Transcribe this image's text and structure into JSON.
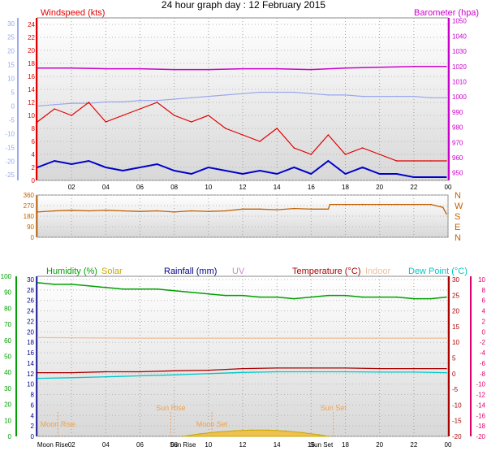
{
  "title": "24 hour graph day : 12 February 2015",
  "colors": {
    "wind_speed": "#e00000",
    "wind_avg": "#0000cc",
    "wind_temp_scale": "#9aa8ee",
    "barometer": "#cc00cc",
    "direction": "#c06000",
    "humidity": "#00a000",
    "solar": "#c8a800",
    "rainfall": "#000090",
    "uv": "#cc88cc",
    "temperature": "#aa0000",
    "indoor": "#f0c0a0",
    "dewpoint": "#00c8c8",
    "moon": "#f0a050",
    "solar_fill": "#f0c050"
  },
  "chart_data": [
    {
      "type": "line",
      "name": "wind-barometer-panel",
      "label_left": "Windspeed (kts)",
      "label_right": "Barometer (hpa)",
      "x_ticks": [
        "02",
        "04",
        "06",
        "08",
        "10",
        "12",
        "14",
        "16",
        "18",
        "20",
        "22",
        "00"
      ],
      "y_left_ticks": [
        "0",
        "2",
        "4",
        "6",
        "8",
        "10",
        "12",
        "14",
        "16",
        "18",
        "20",
        "22",
        "24"
      ],
      "y_right_ticks": [
        "950",
        "960",
        "970",
        "980",
        "990",
        "1000",
        "1010",
        "1020",
        "1030",
        "1040",
        "1050"
      ],
      "y_far_left_ticks": [
        "30",
        "25",
        "20",
        "15",
        "10",
        "5",
        "0",
        "-5",
        "-10",
        "-15",
        "-20",
        "-25"
      ],
      "ylim_left": [
        0,
        25
      ],
      "ylim_right": [
        945,
        1052
      ],
      "ylim_far_left": [
        -27,
        32
      ],
      "series": [
        {
          "key": "barometer",
          "axis": "right",
          "x": [
            0,
            2,
            4,
            6,
            8,
            10,
            12,
            14,
            16,
            18,
            20,
            22,
            23.9
          ],
          "y": [
            1019,
            1019,
            1018.5,
            1018.5,
            1018,
            1018,
            1018.5,
            1018.5,
            1018,
            1019,
            1019.5,
            1020,
            1020
          ]
        },
        {
          "key": "wind_temp_scale",
          "axis": "far_left",
          "x": [
            0,
            1,
            2,
            3,
            4,
            5,
            6,
            7,
            8,
            9,
            10,
            11,
            12,
            13,
            14,
            15,
            16,
            17,
            18,
            19,
            20,
            21,
            22,
            23,
            23.9
          ],
          "y": [
            0,
            0.5,
            1,
            1,
            1.5,
            1.5,
            2,
            2,
            2.5,
            3,
            3.5,
            4,
            4.5,
            5,
            5,
            5,
            4.5,
            4,
            4,
            3.5,
            3.5,
            3.5,
            3.5,
            3,
            3
          ]
        },
        {
          "key": "wind_speed",
          "axis": "left",
          "x": [
            0,
            1,
            2,
            3,
            4,
            5,
            6,
            7,
            8,
            9,
            10,
            11,
            12,
            13,
            14,
            15,
            16,
            17,
            18,
            19,
            20,
            21,
            22,
            23,
            23.9
          ],
          "y": [
            9,
            11,
            10,
            12,
            9,
            10,
            11,
            12,
            10,
            9,
            10,
            8,
            7,
            6,
            8,
            5,
            4,
            7,
            4,
            5,
            4,
            3,
            3,
            3,
            3
          ]
        },
        {
          "key": "wind_avg",
          "axis": "left",
          "x": [
            0,
            1,
            2,
            3,
            4,
            5,
            6,
            7,
            8,
            9,
            10,
            11,
            12,
            13,
            14,
            15,
            16,
            17,
            18,
            19,
            20,
            21,
            22,
            23,
            23.9
          ],
          "y": [
            2,
            3,
            2.5,
            3,
            2,
            1.5,
            2,
            2.5,
            1.5,
            1,
            2,
            1.5,
            1,
            1.5,
            1,
            2,
            1,
            3,
            1,
            2,
            1,
            1,
            0.5,
            0.5,
            0.5
          ]
        }
      ]
    },
    {
      "type": "line",
      "name": "direction-panel",
      "y_ticks": [
        "360",
        "270",
        "180",
        "90",
        "0"
      ],
      "y_right_labels": [
        "N",
        "W",
        "S",
        "E",
        "N"
      ],
      "ylim": [
        0,
        360
      ],
      "series": [
        {
          "key": "direction",
          "x": [
            0,
            1,
            2,
            3,
            4,
            5,
            6,
            7,
            8,
            9,
            10,
            11,
            12,
            13,
            14,
            15,
            16,
            17,
            17.1,
            18,
            19,
            20,
            21,
            22,
            23,
            23.7,
            23.9
          ],
          "y": [
            215,
            225,
            230,
            225,
            230,
            225,
            220,
            225,
            215,
            225,
            220,
            225,
            240,
            240,
            235,
            245,
            240,
            240,
            280,
            280,
            280,
            280,
            280,
            280,
            280,
            255,
            200
          ]
        }
      ]
    },
    {
      "type": "line",
      "name": "temperature-panel",
      "legend": [
        "Humidity (%)",
        "Solar",
        "Rainfall (mm)",
        "UV",
        "Temperature (°C)",
        "Indoor",
        "Dew Point (°C)"
      ],
      "x_ticks": [
        "02",
        "04",
        "06",
        "08",
        "10",
        "12",
        "14",
        "16",
        "18",
        "20",
        "22",
        "00"
      ],
      "y_hum_ticks": [
        "0",
        "10",
        "20",
        "30",
        "40",
        "50",
        "60",
        "70",
        "80",
        "90",
        "100"
      ],
      "y_rain_ticks": [
        "0",
        "2",
        "4",
        "6",
        "8",
        "10",
        "12",
        "14",
        "16",
        "18",
        "20",
        "22",
        "24",
        "26",
        "28",
        "30"
      ],
      "y_right_temp_ticks": [
        "-20",
        "-15",
        "-10",
        "-5",
        "0",
        "5",
        "10",
        "15",
        "20",
        "25",
        "30"
      ],
      "y_far_right_ticks": [
        "-20",
        "-18",
        "-16",
        "-14",
        "-12",
        "-10",
        "-8",
        "-6",
        "-4",
        "-2",
        "0",
        "2",
        "4",
        "6",
        "8",
        "10"
      ],
      "ylim_humidity": [
        0,
        100
      ],
      "ylim_temp": [
        -20,
        30
      ],
      "annotations": [
        {
          "label": "Moon Rise",
          "x": 1.2
        },
        {
          "label": "Sun Rise",
          "x": 7.8
        },
        {
          "label": "Moon Set",
          "x": 10.2
        },
        {
          "label": "Sun Set",
          "x": 17.3
        }
      ],
      "bottom_labels": [
        "Moon Rise",
        "Sun Rise",
        "Sun Set"
      ],
      "series": [
        {
          "key": "humidity",
          "axis": "humidity",
          "x": [
            0,
            1,
            2,
            3,
            4,
            5,
            6,
            7,
            8,
            9,
            10,
            11,
            12,
            13,
            14,
            15,
            16,
            17,
            18,
            19,
            20,
            21,
            22,
            23,
            23.9
          ],
          "y": [
            96,
            95,
            95,
            94,
            93,
            92,
            92,
            92,
            91,
            90,
            89,
            88,
            88,
            87,
            87,
            86,
            87,
            88,
            88,
            87,
            87,
            87,
            86,
            86,
            87
          ]
        },
        {
          "key": "indoor",
          "axis": "temp",
          "x": [
            0,
            6,
            12,
            18,
            23.9
          ],
          "y": [
            11.5,
            11.3,
            11.3,
            11.3,
            11.3
          ]
        },
        {
          "key": "temperature",
          "axis": "temp",
          "x": [
            0,
            2,
            4,
            6,
            8,
            10,
            12,
            14,
            16,
            18,
            20,
            22,
            23.9
          ],
          "y": [
            0.3,
            0.3,
            0.6,
            0.6,
            0.9,
            1.1,
            1.6,
            1.8,
            1.8,
            1.8,
            1.6,
            1.6,
            1.6
          ]
        },
        {
          "key": "dewpoint",
          "axis": "temp",
          "x": [
            0,
            2,
            4,
            6,
            8,
            10,
            12,
            14,
            16,
            18,
            20,
            22,
            23.9
          ],
          "y": [
            -1.5,
            -1.3,
            -1,
            -0.7,
            -0.4,
            0,
            0.4,
            0.6,
            0.6,
            0.6,
            0.5,
            0.5,
            0.3
          ]
        },
        {
          "key": "solar",
          "axis": "temp",
          "x": [
            8.5,
            9.5,
            10.5,
            11.5,
            12.5,
            13.5,
            14.5,
            15.5,
            16.5,
            17
          ],
          "y": [
            -20,
            -19.2,
            -18.6,
            -18.2,
            -18,
            -18,
            -18.3,
            -18.8,
            -19.5,
            -20
          ]
        }
      ]
    }
  ]
}
